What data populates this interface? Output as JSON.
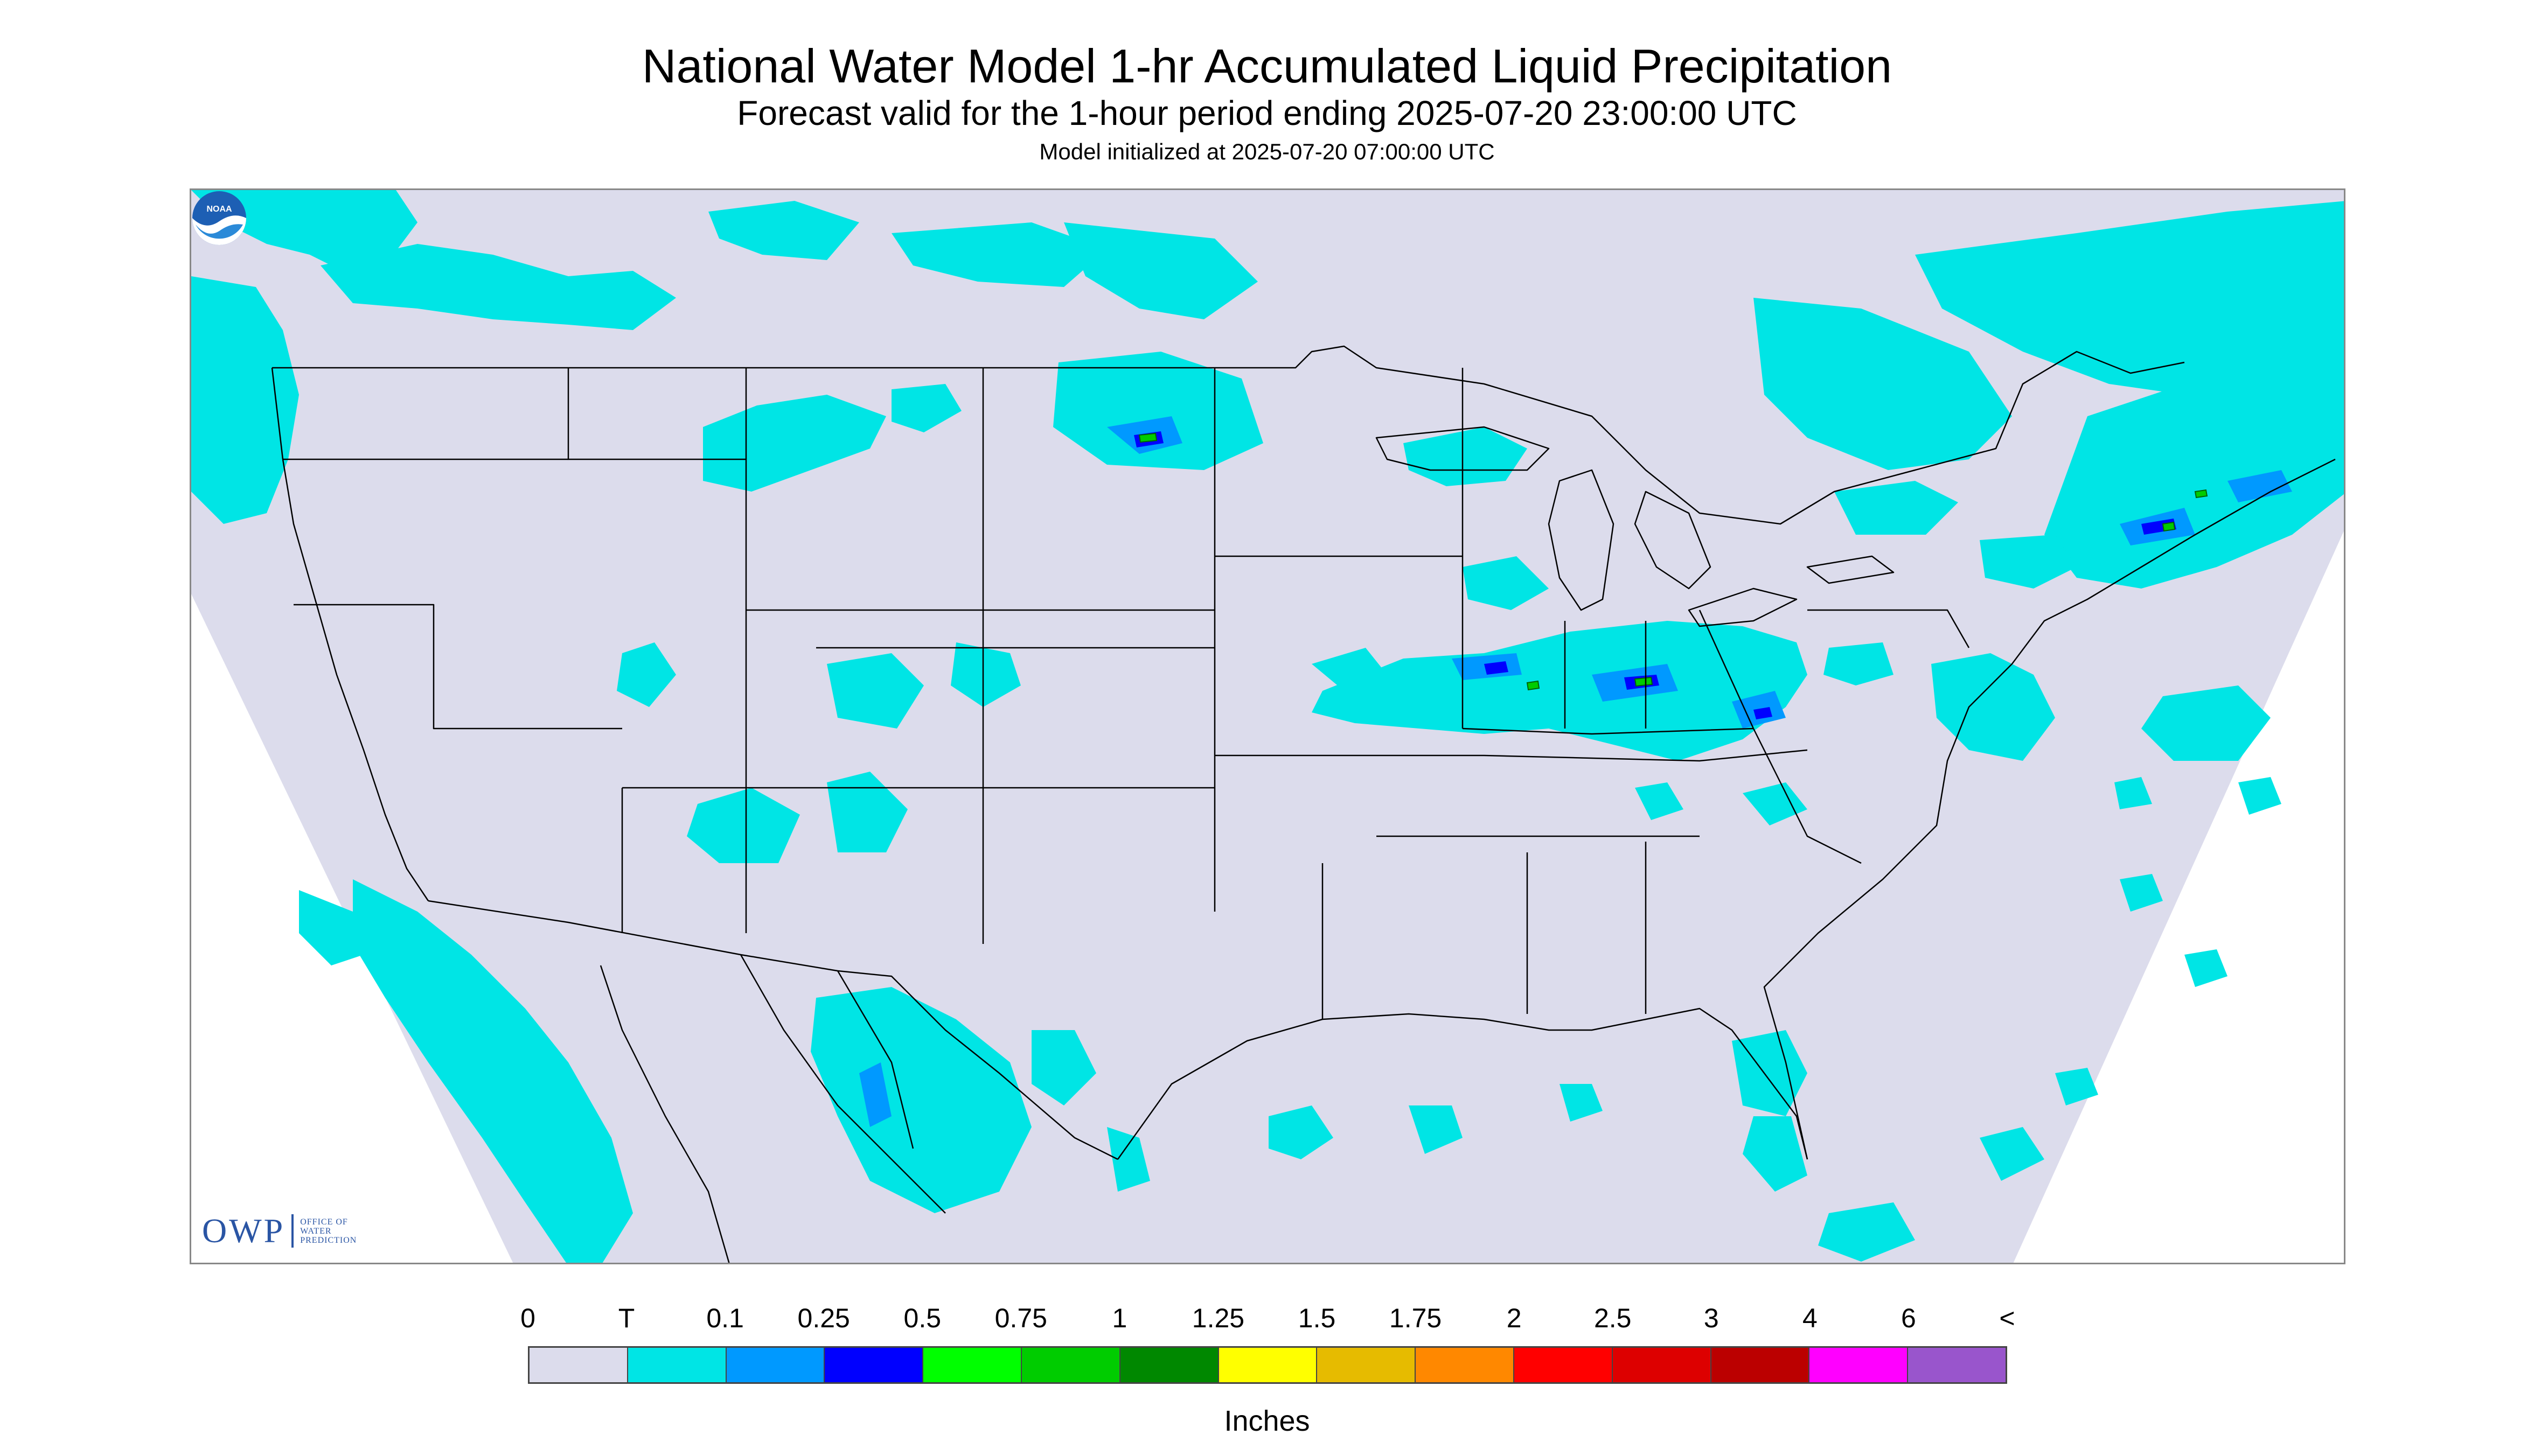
{
  "header": {
    "title": "National Water Model 1-hr Accumulated Liquid Precipitation",
    "subtitle": "Forecast valid for the 1-hour period ending 2025-07-20 23:00:00 UTC",
    "init_line": "Model initialized at 2025-07-20 07:00:00 UTC"
  },
  "map": {
    "background_color": "#dcdcec",
    "ocean_outside_color": "#ffffff",
    "precip_light_color": "#00e5e5",
    "precip_medium_color": "#0099ff",
    "precip_heavy_color": "#0000ff",
    "precip_green_color": "#00cc00",
    "boundary_color": "#000000"
  },
  "logos": {
    "owp_mark": "OWP",
    "owp_text": "OFFICE OF WATER PREDICTION",
    "noaa_text": "NOAA"
  },
  "legend": {
    "unit": "Inches",
    "tick_labels": [
      "0",
      "T",
      "0.1",
      "0.25",
      "0.5",
      "0.75",
      "1",
      "1.25",
      "1.5",
      "1.75",
      "2",
      "2.5",
      "3",
      "4",
      "6",
      "<"
    ],
    "colors": [
      "#dcdcec",
      "#00e5e5",
      "#0099ff",
      "#0000ff",
      "#00ff00",
      "#00cc00",
      "#008800",
      "#ffff00",
      "#e6bb00",
      "#ff8800",
      "#ff0000",
      "#dd0000",
      "#bb0000",
      "#ff00ff",
      "#9955cc"
    ]
  }
}
